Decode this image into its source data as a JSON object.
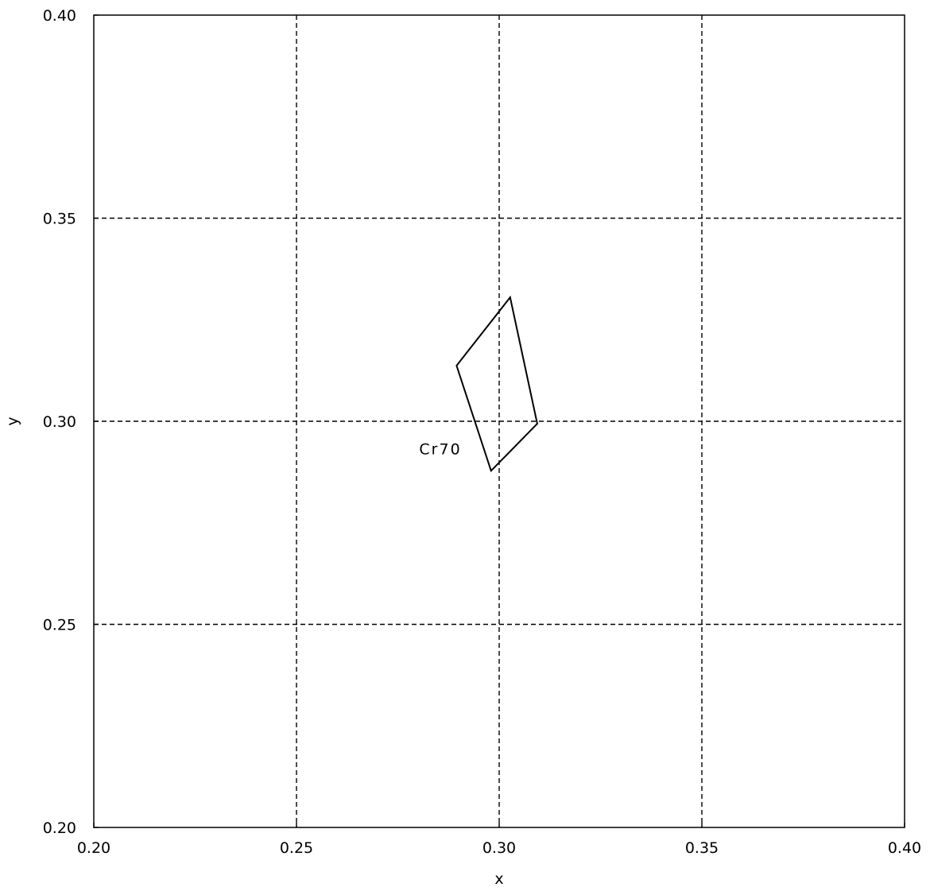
{
  "chart_data": {
    "type": "line",
    "xlabel": "x",
    "ylabel": "y",
    "xlim": [
      0.2,
      0.4
    ],
    "ylim": [
      0.2,
      0.4
    ],
    "x_ticks": [
      0.2,
      0.25,
      0.3,
      0.35,
      0.4
    ],
    "y_ticks": [
      0.2,
      0.25,
      0.3,
      0.35,
      0.4
    ],
    "x_tick_labels": [
      "0.20",
      "0.25",
      "0.30",
      "0.35",
      "0.40"
    ],
    "y_tick_labels": [
      "0.20",
      "0.25",
      "0.30",
      "0.35",
      "0.40"
    ],
    "grid": true,
    "grid_style": "dashed",
    "series": [
      {
        "closed": true,
        "points": [
          {
            "x": 0.2895,
            "y": 0.3137
          },
          {
            "x": 0.3027,
            "y": 0.3305
          },
          {
            "x": 0.3094,
            "y": 0.2994
          },
          {
            "x": 0.298,
            "y": 0.2878
          }
        ]
      }
    ],
    "annotations": [
      {
        "text": "Cr70",
        "x": 0.2855,
        "y": 0.2932
      }
    ],
    "colors": {
      "line": "#000000",
      "grid": "#000000",
      "background": "#ffffff"
    }
  }
}
